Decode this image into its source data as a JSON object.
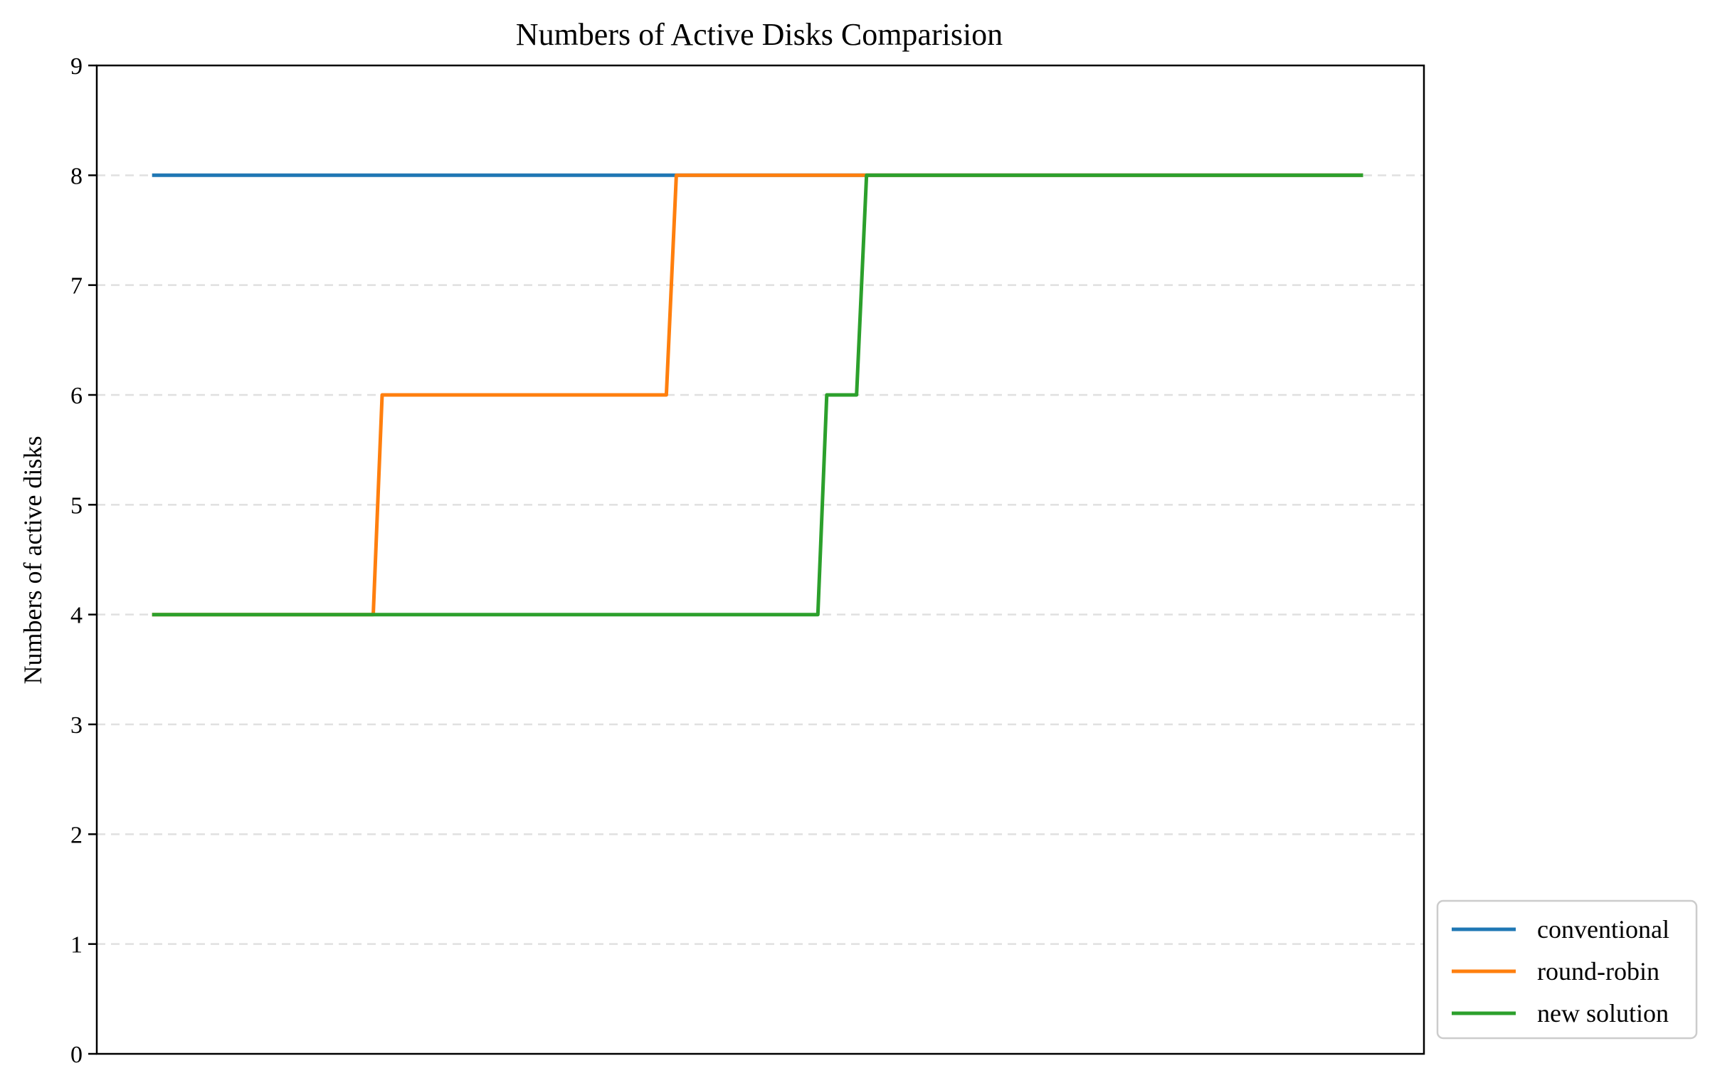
{
  "chart_data": {
    "type": "line",
    "title": "Numbers of Active Disks Comparision",
    "xlabel": "",
    "ylabel": "Numbers of active disks",
    "ylim": [
      0,
      9
    ],
    "xlim": [
      -5,
      115
    ],
    "yticks": [
      "0",
      "1",
      "2",
      "3",
      "4",
      "5",
      "6",
      "7",
      "8",
      "9"
    ],
    "x_ticks_shown": false,
    "grid": "horizontal dashed",
    "legend_position": "lower-right outside",
    "series": [
      {
        "name": "conventional",
        "color": "#1f77b4",
        "points": [
          [
            0,
            8
          ],
          [
            109.5,
            8
          ]
        ]
      },
      {
        "name": "round-robin",
        "color": "#ff7f0e",
        "points": [
          [
            0,
            4
          ],
          [
            20,
            4
          ],
          [
            20.8,
            6
          ],
          [
            46.5,
            6
          ],
          [
            47.4,
            8
          ],
          [
            109.5,
            8
          ]
        ]
      },
      {
        "name": "new solution",
        "color": "#2ca02c",
        "points": [
          [
            0,
            4
          ],
          [
            60.2,
            4
          ],
          [
            61,
            6
          ],
          [
            63.7,
            6
          ],
          [
            64.6,
            8
          ],
          [
            109.5,
            8
          ]
        ]
      }
    ]
  }
}
